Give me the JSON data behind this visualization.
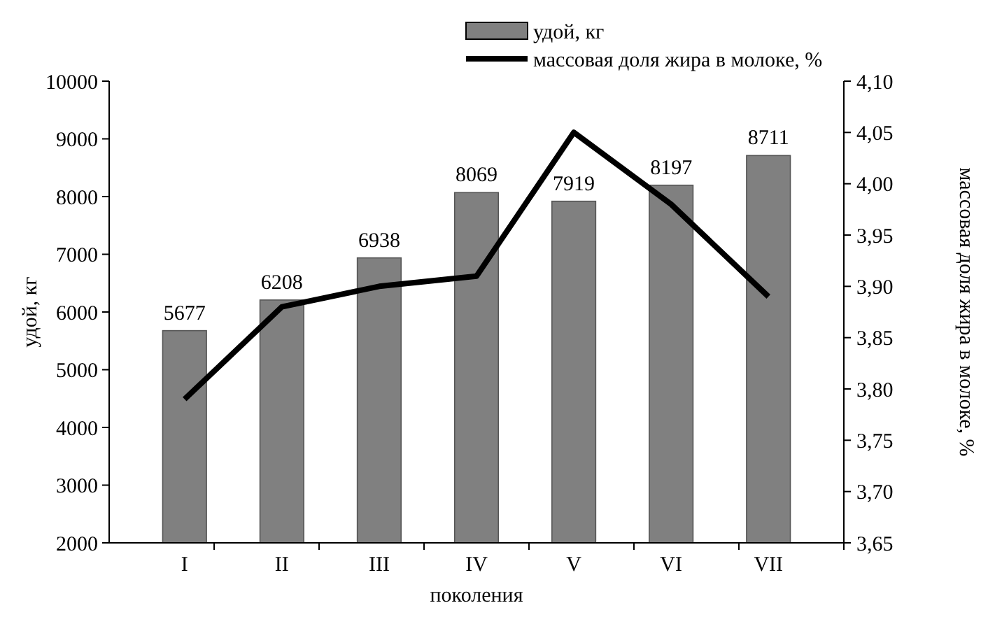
{
  "chart_data": {
    "type": "bar",
    "categories": [
      "I",
      "II",
      "III",
      "IV",
      "V",
      "VI",
      "VII"
    ],
    "xlabel": "поколения",
    "ylabel": "удой, кг",
    "y2label": "массовая доля жира в молоке, %",
    "series": [
      {
        "name": "удой, кг",
        "color": "#808080",
        "values": [
          5677,
          6208,
          6938,
          8069,
          7919,
          8197,
          8711
        ],
        "value_labels": [
          "5677",
          "6208",
          "6938",
          "8069",
          "7919",
          "8197",
          "8711"
        ]
      },
      {
        "name": "массовая доля жира в молоке, %",
        "type": "line",
        "axis": "y2",
        "color": "#000000",
        "values": [
          3.79,
          3.88,
          3.9,
          3.91,
          4.05,
          3.98,
          3.89
        ]
      }
    ],
    "legend": "top",
    "grid": false,
    "ylim": [
      2000,
      10000
    ],
    "yticks": [
      2000,
      3000,
      4000,
      5000,
      6000,
      7000,
      8000,
      9000,
      10000
    ],
    "y2lim": [
      3.65,
      4.1
    ],
    "y2ticks": [
      {
        "value": 3.65,
        "label": "3,65"
      },
      {
        "value": 3.7,
        "label": "3,70"
      },
      {
        "value": 3.75,
        "label": "3,75"
      },
      {
        "value": 3.8,
        "label": "3,80"
      },
      {
        "value": 3.85,
        "label": "3,85"
      },
      {
        "value": 3.9,
        "label": "3,90"
      },
      {
        "value": 3.95,
        "label": "3,95"
      },
      {
        "value": 4.0,
        "label": "4,00"
      },
      {
        "value": 4.05,
        "label": "4,05"
      },
      {
        "value": 4.1,
        "label": "4,10"
      }
    ]
  }
}
